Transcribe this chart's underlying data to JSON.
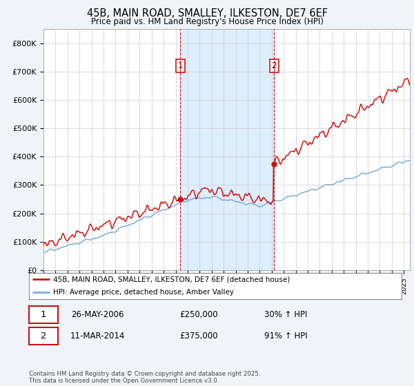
{
  "title": "45B, MAIN ROAD, SMALLEY, ILKESTON, DE7 6EF",
  "subtitle": "Price paid vs. HM Land Registry's House Price Index (HPI)",
  "legend_line1": "45B, MAIN ROAD, SMALLEY, ILKESTON, DE7 6EF (detached house)",
  "legend_line2": "HPI: Average price, detached house, Amber Valley",
  "hpi_color": "#7aadd4",
  "price_color": "#cc1111",
  "vline_color": "#cc1111",
  "fill_color": "#ddeeff",
  "background_color": "#f0f4f8",
  "plot_bg_color": "#ffffff",
  "sale1_date": "26-MAY-2006",
  "sale1_price": "£250,000",
  "sale1_hpi": "30% ↑ HPI",
  "sale2_date": "11-MAR-2014",
  "sale2_price": "£375,000",
  "sale2_hpi": "91% ↑ HPI",
  "footer": "Contains HM Land Registry data © Crown copyright and database right 2025.\nThis data is licensed under the Open Government Licence v3.0.",
  "ylim_max": 850000,
  "yticks": [
    0,
    100000,
    200000,
    300000,
    400000,
    500000,
    600000,
    700000,
    800000
  ],
  "ytick_labels": [
    "£0",
    "£100K",
    "£200K",
    "£300K",
    "£400K",
    "£500K",
    "£600K",
    "£700K",
    "£800K"
  ],
  "sale1_t": 2006.4,
  "sale2_t": 2014.2,
  "sale1_price_val": 250000,
  "sale2_price_val": 375000,
  "xmin": 1995,
  "xmax": 2025.5
}
